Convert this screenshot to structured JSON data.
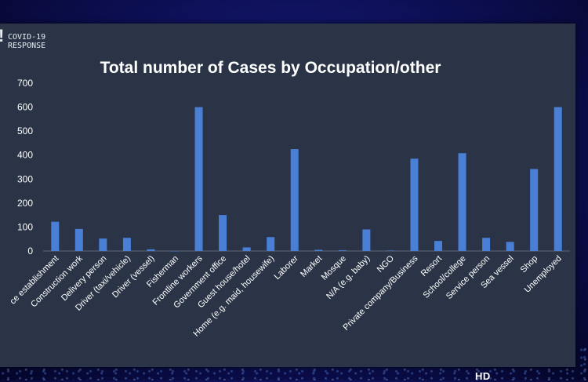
{
  "logo": {
    "line1": "COVID-19",
    "line2": "RESPONSE"
  },
  "hd_badge": "HD",
  "colors": {
    "bar": "#4a7fd6",
    "text": "#ffffff",
    "panel": "#2a3446"
  },
  "chart_data": {
    "type": "bar",
    "title": "Total number of Cases by Occupation/other",
    "xlabel": "",
    "ylabel": "",
    "ylim": [
      0,
      700
    ],
    "yticks": [
      0,
      100,
      200,
      300,
      400,
      500,
      600,
      700
    ],
    "grid": false,
    "categories": [
      "ce establishment",
      "Construction work",
      "Delivery person",
      "Driver (taxi/vehicle)",
      "Driver (vessel)",
      "Fisherman",
      "Frontline workers",
      "Government office",
      "Guest house/hotel",
      "Home (e.g. maid, housewife)",
      "Laborer",
      "Market",
      "Mosque",
      "N/A (e.g. baby)",
      "NGO",
      "Private company/Business",
      "Resort",
      "School/college",
      "Service person",
      "Sea vessel",
      "Shop",
      "Unemployed"
    ],
    "values": [
      122,
      92,
      52,
      55,
      7,
      0,
      600,
      150,
      15,
      58,
      425,
      5,
      3,
      90,
      2,
      385,
      42,
      408,
      55,
      38,
      342,
      600
    ]
  }
}
